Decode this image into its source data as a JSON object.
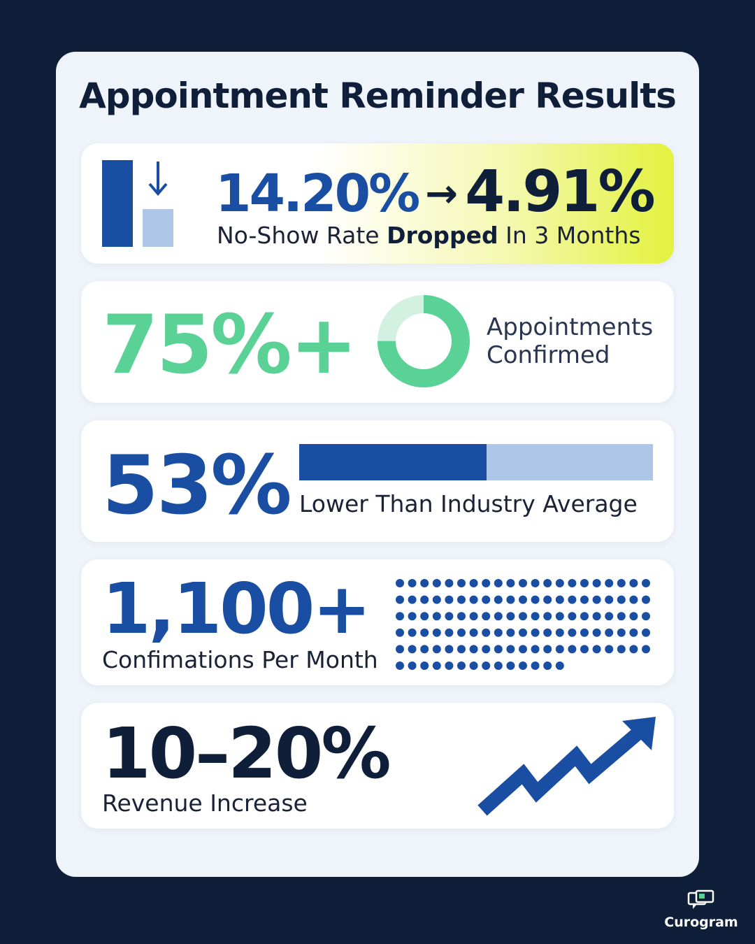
{
  "title": "Appointment Reminder Results",
  "cards": [
    {
      "from": "14.20%",
      "arrow": "→",
      "to": "4.91%",
      "caption_pre": "No-Show Rate ",
      "caption_bold": "Dropped",
      "caption_post": " In 3 Months",
      "icon": "down-arrow-icon"
    },
    {
      "value": "75%+",
      "caption_line1": "Appointments",
      "caption_line2": "Confirmed",
      "donut_fraction": 0.75,
      "color": "#5ad295"
    },
    {
      "value": "53%",
      "caption": "Lower Than Industry Average",
      "bar_fraction": 0.53,
      "color": "#1a4ea3"
    },
    {
      "value": "1,100+",
      "caption": "Confimations Per Month",
      "dot_rows": 6,
      "dot_cols": 21,
      "dots_last_row": 14
    },
    {
      "value": "10–20%",
      "caption": "Revenue Increase",
      "icon": "trend-up-arrow-icon"
    }
  ],
  "brand": {
    "name": "Curogram",
    "icon": "chat-bubbles-icon"
  },
  "colors": {
    "background": "#0f1f3a",
    "panel": "#eff4fb",
    "blue": "#1a4ea3",
    "light_blue": "#adc5e6",
    "green": "#5ad295",
    "lime": "#e3f23e"
  }
}
